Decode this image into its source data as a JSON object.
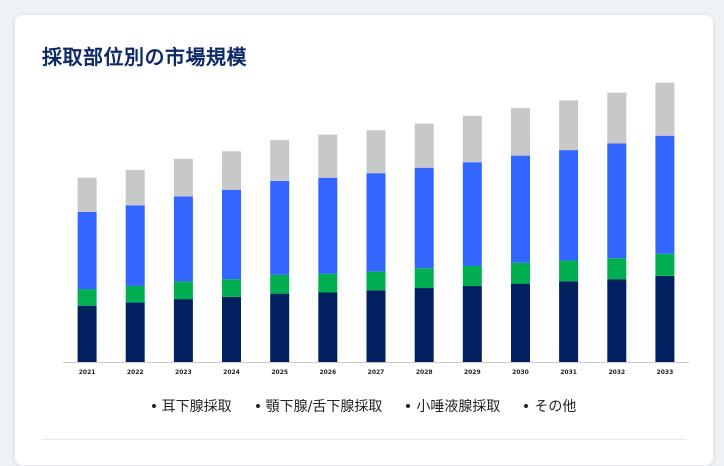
{
  "page": {
    "title": "採取部位別の市場規模"
  },
  "colors": {
    "parotid": "#002060",
    "submandibular": "#00b050",
    "minor": "#3366ff",
    "other": "#c8c8c8",
    "title": "#0d2a66",
    "baseline": "#cccccc"
  },
  "chart_data": {
    "type": "bar",
    "stacked": true,
    "title": "採取部位別の市場規模",
    "categories": [
      "2021",
      "2022",
      "2023",
      "2024",
      "2025",
      "2026",
      "2027",
      "2028",
      "2029",
      "2030",
      "2031",
      "2032",
      "2033"
    ],
    "series": [
      {
        "name": "耳下腺採取",
        "color": "#002060",
        "values": [
          51,
          54,
          57,
          59,
          62,
          63,
          65,
          67,
          69,
          71,
          73,
          75,
          78
        ]
      },
      {
        "name": "顎下腺/舌下腺採取",
        "color": "#00b050",
        "values": [
          15,
          15,
          16,
          16,
          17,
          17,
          17,
          18,
          18,
          19,
          19,
          19,
          20
        ]
      },
      {
        "name": "小唾液腺採取",
        "color": "#3366ff",
        "values": [
          70,
          73,
          77,
          81,
          85,
          87,
          89,
          91,
          94,
          97,
          100,
          104,
          107
        ]
      },
      {
        "name": "その他",
        "color": "#c8c8c8",
        "values": [
          31,
          32,
          34,
          35,
          37,
          39,
          39,
          40,
          42,
          43,
          45,
          46,
          48
        ]
      }
    ],
    "ylim": [
      0,
      260
    ],
    "grid": false,
    "y_axis_visible": false,
    "legend_position": "bottom"
  }
}
